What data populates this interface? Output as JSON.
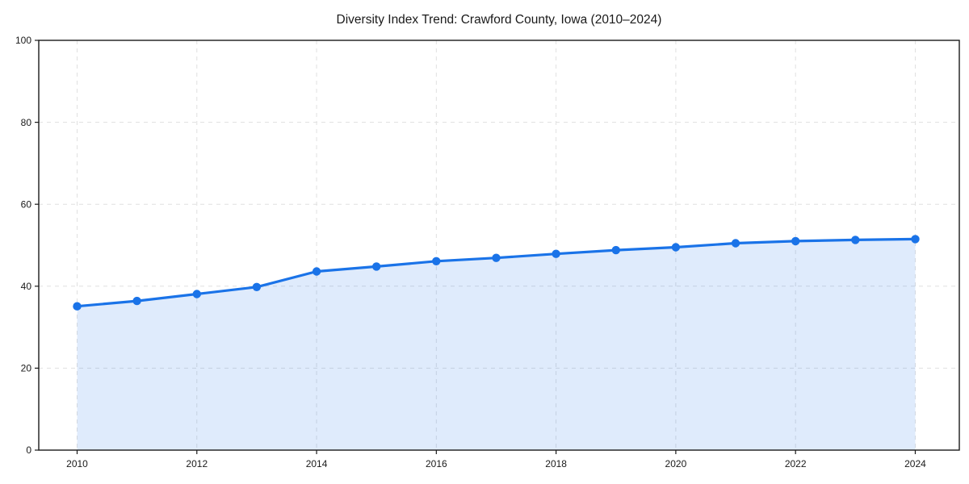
{
  "chart_data": {
    "type": "area",
    "title": "Diversity Index Trend: Crawford County, Iowa (2010–2024)",
    "x": [
      2010,
      2011,
      2012,
      2013,
      2014,
      2015,
      2016,
      2017,
      2018,
      2019,
      2020,
      2021,
      2022,
      2023,
      2024
    ],
    "values": [
      35.1,
      36.4,
      38.1,
      39.8,
      43.6,
      44.8,
      46.1,
      46.9,
      47.9,
      48.8,
      49.5,
      50.5,
      51.0,
      51.3,
      51.5
    ],
    "xlabel": "",
    "ylabel": "",
    "ylim": [
      0,
      100
    ],
    "y_ticks": [
      0,
      20,
      40,
      60,
      80,
      100
    ],
    "x_ticks": [
      2010,
      2012,
      2014,
      2016,
      2018,
      2020,
      2022,
      2024
    ],
    "grid": true,
    "legend": "none",
    "marker": "circle",
    "line_color": "#1a73e8",
    "fill_color": "rgba(26,115,232,0.14)",
    "grid_color": "#e0e0e0",
    "axis_color": "#1a1a1a",
    "background": "#ffffff"
  }
}
